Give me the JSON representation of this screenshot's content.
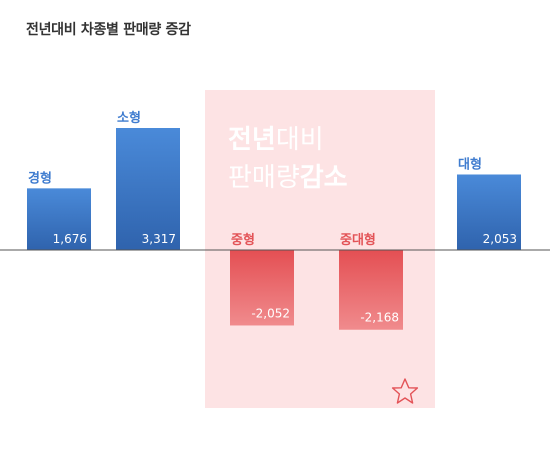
{
  "title": "전년대비 차종별 판매량 증감",
  "chart_data": {
    "type": "bar",
    "categories": [
      "경형",
      "소형",
      "중형",
      "중대형",
      "대형"
    ],
    "values": [
      1676,
      3317,
      -2052,
      -2168,
      2053
    ],
    "value_labels": [
      "1,676",
      "3,317",
      "-2,052",
      "-2,168",
      "2,053"
    ],
    "ylim": [
      -2500,
      3500
    ],
    "grid": false,
    "colors": {
      "positive": "#3f7ccf",
      "negative": "#e35357",
      "highlight_bg": "#fde3e4"
    }
  },
  "highlight": {
    "line1_bold": "전년",
    "line1_light": "대비",
    "line2_light": "판매량",
    "line2_bold": "감소"
  }
}
